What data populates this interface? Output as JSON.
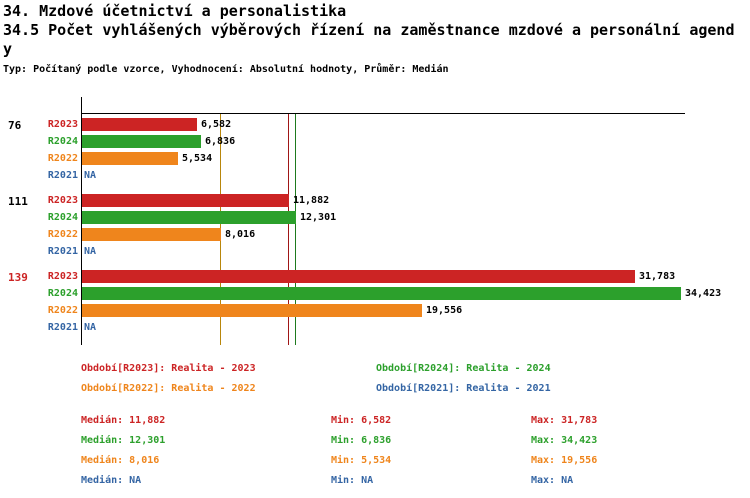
{
  "header": {
    "title_line1": "34. Mzdové účetnictví a personalistika",
    "title_line2": "34.5 Počet vyhlášených výběrových řízení na zaměstnance mzdové a personální agend",
    "title_line3": "y",
    "subtitle": "Typ: Počítaný podle vzorce, Vyhodnocení: Absolutní hodnoty, Průměr: Medián"
  },
  "chart_data": {
    "type": "bar",
    "orientation": "horizontal",
    "xlim": [
      0,
      34423
    ],
    "grid": false,
    "series_order": [
      "R2023",
      "R2024",
      "R2022",
      "R2021"
    ],
    "series_colors": {
      "R2023": "#cc2424",
      "R2024": "#2ca02c",
      "R2022": "#ef851c",
      "R2021": "#3465a4"
    },
    "median_line_colors": {
      "R2023": "#a01616",
      "R2024": "#1e7a1e",
      "R2022": "#b8860b"
    },
    "value_label_color": "#000000",
    "groups": [
      {
        "label": "76",
        "label_color": "#000000",
        "bars": [
          {
            "series": "R2023",
            "value": 6582,
            "value_label": "6,582"
          },
          {
            "series": "R2024",
            "value": 6836,
            "value_label": "6,836"
          },
          {
            "series": "R2022",
            "value": 5534,
            "value_label": "5,534"
          },
          {
            "series": "R2021",
            "value": null,
            "value_label": "NA"
          }
        ]
      },
      {
        "label": "111",
        "label_color": "#000000",
        "bars": [
          {
            "series": "R2023",
            "value": 11882,
            "value_label": "11,882"
          },
          {
            "series": "R2024",
            "value": 12301,
            "value_label": "12,301"
          },
          {
            "series": "R2022",
            "value": 8016,
            "value_label": "8,016"
          },
          {
            "series": "R2021",
            "value": null,
            "value_label": "NA"
          }
        ]
      },
      {
        "label": "139",
        "label_color": "#cc2424",
        "bars": [
          {
            "series": "R2023",
            "value": 31783,
            "value_label": "31,783"
          },
          {
            "series": "R2024",
            "value": 34423,
            "value_label": "34,423"
          },
          {
            "series": "R2022",
            "value": 19556,
            "value_label": "19,556"
          },
          {
            "series": "R2021",
            "value": null,
            "value_label": "NA"
          }
        ]
      }
    ],
    "median_lines": [
      {
        "series": "R2023",
        "value": 11882
      },
      {
        "series": "R2024",
        "value": 12301
      },
      {
        "series": "R2022",
        "value": 8016
      }
    ],
    "legend": [
      {
        "series": "R2023",
        "label": "Období[R2023]: Realita - 2023",
        "color": "#cc2424"
      },
      {
        "series": "R2024",
        "label": "Období[R2024]: Realita - 2024",
        "color": "#2ca02c"
      },
      {
        "series": "R2022",
        "label": "Období[R2022]: Realita - 2022",
        "color": "#ef851c"
      },
      {
        "series": "R2021",
        "label": "Období[R2021]: Realita - 2021",
        "color": "#3465a4"
      }
    ],
    "stats": [
      {
        "series": "R2023",
        "median": "Medián: 11,882",
        "min": "Min: 6,582",
        "max": "Max: 31,783",
        "color": "#cc2424"
      },
      {
        "series": "R2024",
        "median": "Medián: 12,301",
        "min": "Min: 6,836",
        "max": "Max: 34,423",
        "color": "#2ca02c"
      },
      {
        "series": "R2022",
        "median": "Medián: 8,016",
        "min": "Min: 5,534",
        "max": "Max: 19,556",
        "color": "#ef851c"
      },
      {
        "series": "R2021",
        "median": "Medián: NA",
        "min": "Min: NA",
        "max": "Max: NA",
        "color": "#3465a4"
      }
    ]
  }
}
